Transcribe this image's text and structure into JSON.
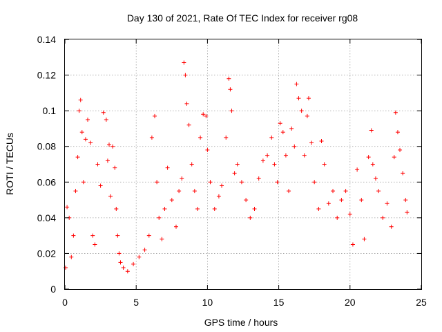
{
  "chart_data": {
    "type": "scatter",
    "title": "Day 130 of 2021, Rate Of TEC Index for receiver rg08",
    "xlabel": "GPS time / hours",
    "ylabel": "ROTI / TECUs",
    "xlim": [
      0,
      25
    ],
    "ylim": [
      0,
      0.14
    ],
    "x_ticks": [
      "0",
      "5",
      "10",
      "15",
      "20",
      "25"
    ],
    "y_ticks": [
      "0",
      "0.02",
      "0.04",
      "0.06",
      "0.08",
      "0.1",
      "0.12",
      "0.14"
    ],
    "grid": true,
    "marker": "plus",
    "color": "#ff0000",
    "series": [
      {
        "name": "",
        "x": [
          0.05,
          0.15,
          0.3,
          0.45,
          0.6,
          0.75,
          0.9,
          1.0,
          1.1,
          1.2,
          1.3,
          1.45,
          1.6,
          1.8,
          1.95,
          2.1,
          2.3,
          2.5,
          2.7,
          2.9,
          3.0,
          3.1,
          3.2,
          3.35,
          3.5,
          3.6,
          3.7,
          3.8,
          3.9,
          4.1,
          4.4,
          4.8,
          5.2,
          5.6,
          5.9,
          6.1,
          6.3,
          6.45,
          6.6,
          6.8,
          7.0,
          7.2,
          7.5,
          7.8,
          8.0,
          8.2,
          8.35,
          8.45,
          8.55,
          8.7,
          8.9,
          9.1,
          9.3,
          9.5,
          9.7,
          9.9,
          10.0,
          10.2,
          10.5,
          10.8,
          11.0,
          11.3,
          11.5,
          11.6,
          11.7,
          11.9,
          12.1,
          12.4,
          12.7,
          13.0,
          13.3,
          13.6,
          13.9,
          14.2,
          14.5,
          14.7,
          14.9,
          15.1,
          15.3,
          15.5,
          15.7,
          15.9,
          16.1,
          16.25,
          16.4,
          16.6,
          16.8,
          17.0,
          17.1,
          17.3,
          17.5,
          17.8,
          18.0,
          18.2,
          18.5,
          18.8,
          19.1,
          19.4,
          19.7,
          20.0,
          20.2,
          20.5,
          20.8,
          21.0,
          21.3,
          21.5,
          21.6,
          21.8,
          22.0,
          22.3,
          22.6,
          22.9,
          23.1,
          23.2,
          23.35,
          23.5,
          23.7,
          23.9,
          24.0
        ],
        "y": [
          0.012,
          0.046,
          0.04,
          0.018,
          0.03,
          0.055,
          0.074,
          0.1,
          0.106,
          0.088,
          0.06,
          0.084,
          0.095,
          0.082,
          0.03,
          0.025,
          0.07,
          0.058,
          0.099,
          0.095,
          0.072,
          0.081,
          0.052,
          0.08,
          0.068,
          0.045,
          0.03,
          0.02,
          0.015,
          0.012,
          0.01,
          0.014,
          0.018,
          0.022,
          0.03,
          0.085,
          0.097,
          0.06,
          0.04,
          0.028,
          0.045,
          0.068,
          0.05,
          0.035,
          0.055,
          0.062,
          0.127,
          0.12,
          0.104,
          0.092,
          0.07,
          0.055,
          0.045,
          0.085,
          0.098,
          0.097,
          0.078,
          0.06,
          0.045,
          0.052,
          0.058,
          0.085,
          0.118,
          0.112,
          0.1,
          0.065,
          0.07,
          0.06,
          0.05,
          0.04,
          0.045,
          0.062,
          0.072,
          0.075,
          0.085,
          0.07,
          0.06,
          0.093,
          0.088,
          0.075,
          0.055,
          0.09,
          0.08,
          0.115,
          0.107,
          0.1,
          0.075,
          0.097,
          0.107,
          0.082,
          0.06,
          0.045,
          0.083,
          0.07,
          0.048,
          0.055,
          0.04,
          0.05,
          0.055,
          0.042,
          0.025,
          0.067,
          0.05,
          0.028,
          0.074,
          0.089,
          0.07,
          0.062,
          0.055,
          0.04,
          0.048,
          0.035,
          0.074,
          0.099,
          0.088,
          0.078,
          0.065,
          0.05,
          0.043
        ]
      }
    ]
  }
}
